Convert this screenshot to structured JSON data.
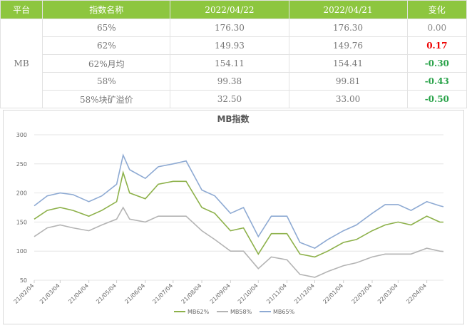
{
  "table": {
    "header": [
      "平台",
      "指数名称",
      "2022/04/22",
      "2022/04/21",
      "变化"
    ],
    "platform": "MB",
    "rows": [
      [
        "65%",
        "176.30",
        "176.30",
        "0.00"
      ],
      [
        "62%",
        "149.93",
        "149.76",
        "0.17"
      ],
      [
        "62%月均",
        "154.11",
        "154.41",
        "-0.30"
      ],
      [
        "58%",
        "99.38",
        "99.81",
        "-0.43"
      ],
      [
        "58%块矿溢价",
        "32.50",
        "33.00",
        "-0.50"
      ]
    ]
  },
  "chart_data": {
    "type": "line",
    "title": "MB指数",
    "x": [
      "21/02/04",
      "21/02/18",
      "21/03/04",
      "21/03/18",
      "21/04/04",
      "21/04/18",
      "21/05/04",
      "21/05/11",
      "21/05/18",
      "21/06/04",
      "21/06/18",
      "21/07/04",
      "21/07/18",
      "21/08/04",
      "21/08/18",
      "21/09/04",
      "21/09/18",
      "21/10/04",
      "21/10/18",
      "21/11/04",
      "21/11/18",
      "21/12/04",
      "21/12/18",
      "22/01/04",
      "22/01/18",
      "22/02/04",
      "22/02/18",
      "22/03/04",
      "22/03/18",
      "22/04/04",
      "22/04/18",
      "22/04/22"
    ],
    "xticks": [
      "21/02/04",
      "21/03/04",
      "21/04/04",
      "21/05/04",
      "21/06/04",
      "21/07/04",
      "21/08/04",
      "21/09/04",
      "21/10/04",
      "21/11/04",
      "21/12/04",
      "22/01/04",
      "22/02/04",
      "22/03/04",
      "22/04/04"
    ],
    "ylim": [
      50,
      300
    ],
    "yticks": [
      50,
      100,
      150,
      200,
      250,
      300
    ],
    "grid": true,
    "series": [
      {
        "name": "MB62%",
        "color": "#8db14a",
        "values": [
          155,
          170,
          175,
          170,
          160,
          170,
          185,
          235,
          200,
          190,
          215,
          220,
          220,
          175,
          165,
          135,
          140,
          95,
          130,
          130,
          95,
          90,
          100,
          115,
          120,
          135,
          145,
          150,
          145,
          160,
          150,
          149.93
        ]
      },
      {
        "name": "MB58%",
        "color": "#b4b4b4",
        "values": [
          125,
          140,
          145,
          140,
          135,
          145,
          155,
          175,
          155,
          150,
          160,
          160,
          160,
          135,
          120,
          100,
          100,
          70,
          90,
          85,
          60,
          55,
          65,
          75,
          80,
          90,
          95,
          95,
          95,
          105,
          100,
          99.38
        ]
      },
      {
        "name": "MB65%",
        "color": "#8eaad3",
        "values": [
          178,
          195,
          200,
          197,
          185,
          195,
          215,
          265,
          240,
          225,
          245,
          250,
          255,
          205,
          195,
          165,
          175,
          125,
          160,
          160,
          115,
          105,
          120,
          135,
          145,
          165,
          180,
          180,
          170,
          185,
          178,
          176.3
        ]
      }
    ]
  }
}
